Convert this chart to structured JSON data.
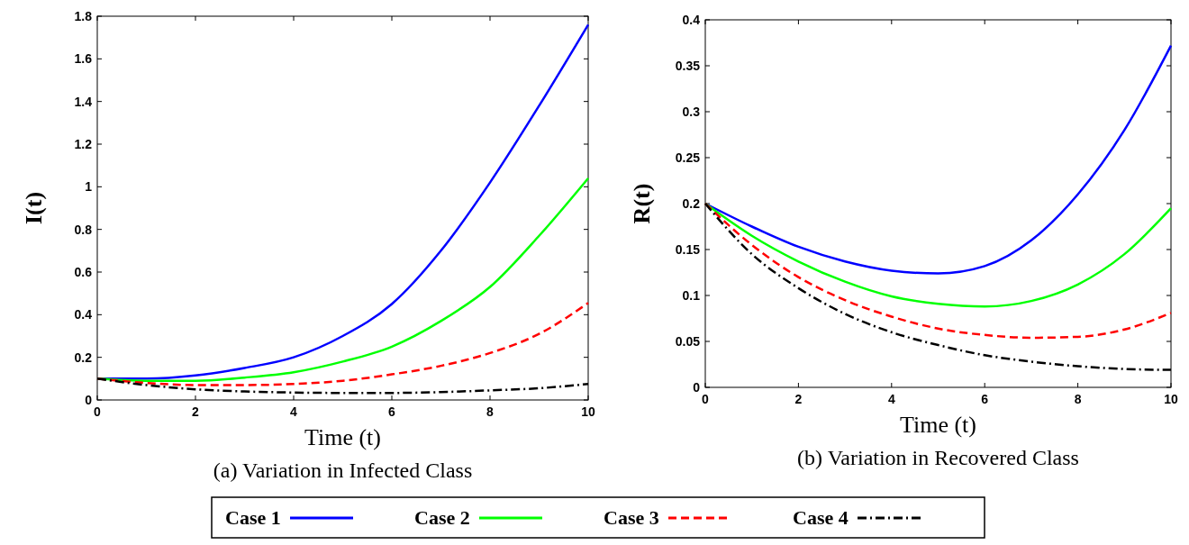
{
  "chart_data": [
    {
      "type": "line",
      "title": "(a)  Variation in Infected Class",
      "xlabel": "Time (t)",
      "ylabel": "I(t)",
      "x": [
        0,
        1,
        2,
        3,
        4,
        5,
        6,
        7,
        8,
        9,
        10
      ],
      "xlim": [
        0,
        10
      ],
      "xticks": [
        0,
        2,
        4,
        6,
        8,
        10
      ],
      "ylim": [
        0,
        1.8
      ],
      "yticks": [
        0,
        0.2,
        0.4,
        0.6,
        0.8,
        1,
        1.2,
        1.4,
        1.6,
        1.8
      ],
      "legend": "bottom",
      "series": [
        {
          "name": "Case 1",
          "color": "#0000ff",
          "line_style": "solid",
          "values": [
            0.1,
            0.1,
            0.115,
            0.15,
            0.2,
            0.3,
            0.45,
            0.7,
            1.02,
            1.38,
            1.76
          ]
        },
        {
          "name": "Case 2",
          "color": "#00ff00",
          "line_style": "solid",
          "values": [
            0.1,
            0.09,
            0.09,
            0.105,
            0.13,
            0.18,
            0.25,
            0.37,
            0.53,
            0.77,
            1.04
          ]
        },
        {
          "name": "Case 3",
          "color": "#ff0000",
          "line_style": "dashed",
          "values": [
            0.1,
            0.08,
            0.07,
            0.07,
            0.075,
            0.09,
            0.12,
            0.16,
            0.22,
            0.31,
            0.455
          ]
        },
        {
          "name": "Case 4",
          "color": "#000000",
          "line_style": "dashdot",
          "values": [
            0.1,
            0.07,
            0.05,
            0.04,
            0.035,
            0.033,
            0.033,
            0.037,
            0.045,
            0.055,
            0.075
          ]
        }
      ]
    },
    {
      "type": "line",
      "title": "(b)  Variation in Recovered Class",
      "xlabel": "Time (t)",
      "ylabel": "R(t)",
      "x": [
        0,
        1,
        2,
        3,
        4,
        5,
        6,
        7,
        8,
        9,
        10
      ],
      "xlim": [
        0,
        10
      ],
      "xticks": [
        0,
        2,
        4,
        6,
        8,
        10
      ],
      "ylim": [
        0,
        0.4
      ],
      "yticks": [
        0,
        0.05,
        0.1,
        0.15,
        0.2,
        0.25,
        0.3,
        0.35,
        0.4
      ],
      "series": [
        {
          "color": "#0000ff",
          "line_style": "solid",
          "values": [
            0.2,
            0.175,
            0.153,
            0.137,
            0.127,
            0.124,
            0.132,
            0.16,
            0.21,
            0.28,
            0.372
          ]
        },
        {
          "color": "#00ff00",
          "line_style": "solid",
          "values": [
            0.2,
            0.165,
            0.137,
            0.115,
            0.099,
            0.091,
            0.088,
            0.094,
            0.112,
            0.145,
            0.195
          ]
        },
        {
          "color": "#ff0000",
          "line_style": "dashed",
          "values": [
            0.2,
            0.155,
            0.12,
            0.095,
            0.077,
            0.064,
            0.057,
            0.054,
            0.055,
            0.063,
            0.081
          ]
        },
        {
          "color": "#000000",
          "line_style": "dashdot",
          "values": [
            0.2,
            0.145,
            0.108,
            0.08,
            0.06,
            0.046,
            0.035,
            0.028,
            0.023,
            0.02,
            0.019
          ]
        }
      ]
    }
  ]
}
